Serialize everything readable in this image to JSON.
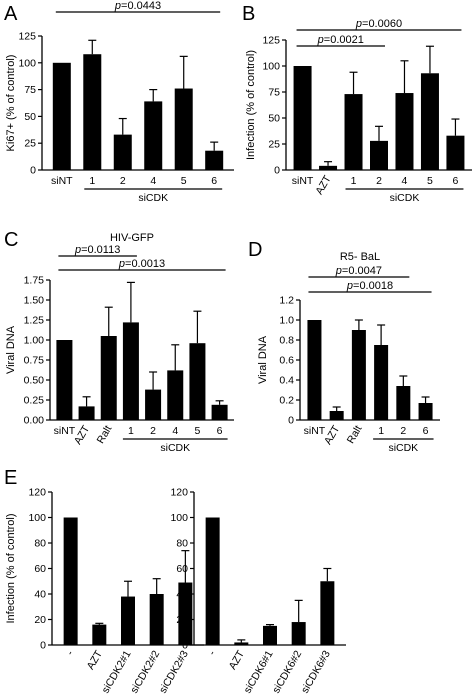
{
  "figure": {
    "panel_letters": [
      "A",
      "B",
      "C",
      "D",
      "E"
    ]
  },
  "chart_data": [
    {
      "id": "A",
      "type": "bar",
      "title": "",
      "xlabel": "",
      "ylabel": "Ki67+ (% of control)",
      "ylim": [
        0,
        125
      ],
      "yticks": [
        0,
        25,
        50,
        75,
        100,
        125
      ],
      "categories": [
        "siNT",
        "1",
        "2",
        "4",
        "5",
        "6"
      ],
      "values": [
        100,
        108,
        33,
        64,
        76,
        18
      ],
      "errors": [
        0,
        13,
        15,
        11,
        30,
        8
      ],
      "group_label": "siCDK",
      "group_range": [
        1,
        5
      ],
      "significance": [
        {
          "p": "0.0443",
          "from": 0,
          "to": 5,
          "level": 132
        }
      ]
    },
    {
      "id": "B",
      "type": "bar",
      "title": "",
      "xlabel": "",
      "ylabel": "Infection (% of control)",
      "ylim": [
        0,
        125
      ],
      "yticks": [
        0,
        25,
        50,
        75,
        100,
        125
      ],
      "categories": [
        "siNT",
        "AZT",
        "1",
        "2",
        "4",
        "5",
        "6"
      ],
      "values": [
        100,
        4,
        73,
        28,
        74,
        93,
        33
      ],
      "errors": [
        0,
        4,
        21,
        14,
        31,
        26,
        16
      ],
      "group_label": "siCDK",
      "group_range": [
        2,
        6
      ],
      "significance": [
        {
          "p": "0.0060",
          "from": 0,
          "to": 6,
          "level": 135
        },
        {
          "p": "0.0021",
          "from": 0,
          "to": 3,
          "level": 115
        }
      ]
    },
    {
      "id": "C",
      "type": "bar",
      "title": "HIV-GFP",
      "xlabel": "",
      "ylabel": "Viral DNA",
      "ylim": [
        0,
        1.75
      ],
      "yticks": [
        0,
        0.25,
        0.5,
        0.75,
        1.0,
        1.25,
        1.5,
        1.75
      ],
      "ytick_labels": [
        "0.00",
        "0.25",
        "0.50",
        "0.75",
        "1.00",
        "1.25",
        "1.50",
        "1.75"
      ],
      "categories": [
        "siNT",
        "AZT",
        "Ralt",
        "1",
        "2",
        "4",
        "5",
        "6"
      ],
      "values": [
        1.0,
        0.17,
        1.05,
        1.22,
        0.38,
        0.62,
        0.96,
        0.19
      ],
      "errors": [
        0,
        0.12,
        0.36,
        0.5,
        0.22,
        0.32,
        0.4,
        0.05
      ],
      "group_label": "siCDK",
      "group_range": [
        3,
        7
      ],
      "significance": [
        {
          "p": "0.0113",
          "from": 0,
          "to": 3,
          "level": 1.85
        },
        {
          "p": "0.0013",
          "from": 0,
          "to": 7,
          "level": 1.72
        }
      ]
    },
    {
      "id": "D",
      "type": "bar",
      "title": "R5- BaL",
      "xlabel": "",
      "ylabel": "Viral DNA",
      "ylim": [
        0,
        1.2
      ],
      "yticks": [
        0,
        0.2,
        0.4,
        0.6,
        0.8,
        1.0,
        1.2
      ],
      "ytick_labels": [
        "0",
        "0.2",
        "0.4",
        "0.6",
        "0.8",
        "1.0",
        "1.2"
      ],
      "categories": [
        "siNT",
        "AZT",
        "Ralt",
        "1",
        "2",
        "6"
      ],
      "values": [
        1.0,
        0.09,
        0.9,
        0.75,
        0.34,
        0.17
      ],
      "errors": [
        0,
        0.04,
        0.1,
        0.2,
        0.1,
        0.06
      ],
      "group_label": "siCDK",
      "group_range": [
        3,
        5
      ],
      "significance": [
        {
          "p": "0.0047",
          "from": 0,
          "to": 4,
          "level": 1.24
        },
        {
          "p": "0.0018",
          "from": 0,
          "to": 5,
          "level": 1.14
        }
      ]
    },
    {
      "id": "E1",
      "type": "bar",
      "title": "",
      "xlabel": "",
      "ylabel": "Infection (% of control)",
      "ylim": [
        0,
        120
      ],
      "yticks": [
        0,
        20,
        40,
        60,
        80,
        100,
        120
      ],
      "categories": [
        "-",
        "AZT",
        "siCDK2#1",
        "siCDK2#2",
        "siCDK2#3"
      ],
      "values": [
        100,
        16,
        38,
        40,
        49
      ],
      "errors": [
        0,
        1,
        12,
        12,
        25
      ],
      "significance": []
    },
    {
      "id": "E2",
      "type": "bar",
      "title": "",
      "xlabel": "",
      "ylabel": "",
      "ylim": [
        0,
        120
      ],
      "yticks": [
        0,
        20,
        40,
        60,
        80,
        100,
        120
      ],
      "categories": [
        "-",
        "AZT",
        "siCDK6#1",
        "siCDK6#2",
        "siCDK6#3"
      ],
      "values": [
        100,
        2,
        15,
        18,
        50
      ],
      "errors": [
        0,
        2,
        1,
        17,
        10
      ],
      "significance": []
    }
  ]
}
